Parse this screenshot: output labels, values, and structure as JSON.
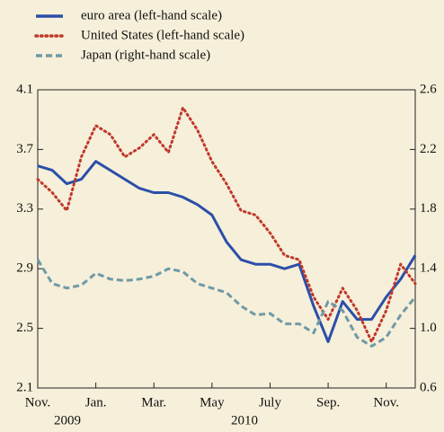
{
  "chart_data": {
    "type": "line",
    "x": [
      0,
      0.5,
      1,
      1.5,
      2,
      2.5,
      3,
      3.5,
      4,
      4.5,
      5,
      5.5,
      6,
      6.5,
      7,
      7.5,
      8,
      8.5,
      9,
      9.5,
      10,
      10.5,
      11,
      11.5,
      12,
      12.5,
      13
    ],
    "series": [
      {
        "name": "euro area (left-hand scale)",
        "color": "#2b4fa8",
        "style": "solid",
        "values": [
          3.59,
          3.56,
          3.47,
          3.5,
          3.62,
          3.56,
          3.5,
          3.44,
          3.41,
          3.41,
          3.38,
          3.33,
          3.26,
          3.08,
          2.96,
          2.93,
          2.93,
          2.9,
          2.93,
          2.65,
          2.41,
          2.68,
          2.56,
          2.56,
          2.71,
          2.83,
          2.99
        ]
      },
      {
        "name": "United States (left-hand scale)",
        "color": "#c0392b",
        "style": "dotted",
        "values": [
          3.5,
          3.41,
          3.29,
          3.65,
          3.86,
          3.8,
          3.65,
          3.71,
          3.8,
          3.68,
          3.98,
          3.83,
          3.62,
          3.47,
          3.29,
          3.26,
          3.14,
          2.99,
          2.96,
          2.71,
          2.56,
          2.77,
          2.62,
          2.41,
          2.62,
          2.93,
          2.8
        ]
      },
      {
        "name": "Japan (right-hand scale)",
        "color": "#6f9aa6",
        "style": "dashed",
        "axis": "y2",
        "values": [
          1.46,
          1.3,
          1.27,
          1.29,
          1.37,
          1.33,
          1.32,
          1.33,
          1.35,
          1.4,
          1.38,
          1.3,
          1.27,
          1.24,
          1.15,
          1.09,
          1.1,
          1.03,
          1.03,
          0.97,
          1.18,
          1.12,
          0.94,
          0.88,
          0.94,
          1.09,
          1.21
        ]
      }
    ],
    "xlim": [
      0,
      13
    ],
    "xticks": [
      {
        "value": 0,
        "label": "Nov."
      },
      {
        "value": 2,
        "label": "Jan."
      },
      {
        "value": 4,
        "label": "Mar."
      },
      {
        "value": 6,
        "label": "May"
      },
      {
        "value": 8,
        "label": "July"
      },
      {
        "value": 10,
        "label": "Sep."
      },
      {
        "value": 12,
        "label": "Nov."
      }
    ],
    "years": [
      "2009",
      "2010"
    ],
    "ylim": [
      2.1,
      4.1
    ],
    "yticks": [
      2.1,
      2.5,
      2.9,
      3.3,
      3.7,
      4.1
    ],
    "y2lim": [
      0.6,
      2.6
    ],
    "y2ticks": [
      {
        "value": 0.6,
        "label": "0.6"
      },
      {
        "value": 1.0,
        "label": "1.0"
      },
      {
        "value": 1.4,
        "label": "1.4"
      },
      {
        "value": 1.8,
        "label": "1.8"
      },
      {
        "value": 2.2,
        "label": "2.2"
      },
      {
        "value": 2.6,
        "label": "2.6"
      }
    ]
  }
}
